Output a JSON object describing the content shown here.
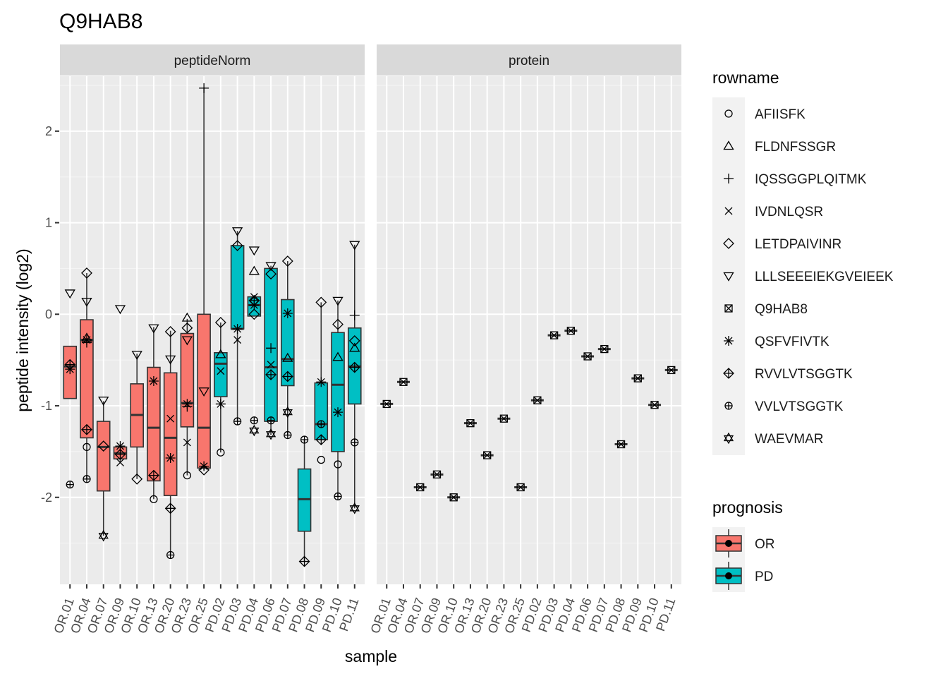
{
  "chart_data": {
    "type": "box",
    "title": "Q9HAB8",
    "xlabel": "sample",
    "ylabel": "peptide intensity (log2)",
    "ylim": [
      -2.95,
      2.6
    ],
    "y_ticks": [
      -2,
      -1,
      0,
      1,
      2
    ],
    "grid": true,
    "panels": [
      "peptideNorm",
      "protein"
    ],
    "samples": [
      "OR.01",
      "OR.04",
      "OR.07",
      "OR.09",
      "OR.10",
      "OR.13",
      "OR.20",
      "OR.23",
      "OR.25",
      "PD.02",
      "PD.03",
      "PD.04",
      "PD.06",
      "PD.07",
      "PD.08",
      "PD.09",
      "PD.10",
      "PD.11"
    ],
    "groups": [
      "OR",
      "OR",
      "OR",
      "OR",
      "OR",
      "OR",
      "OR",
      "OR",
      "OR",
      "PD",
      "PD",
      "PD",
      "PD",
      "PD",
      "PD",
      "PD",
      "PD",
      "PD"
    ],
    "group_colors": {
      "OR": "#F8766D",
      "PD": "#00BFC4"
    },
    "legend_rowname_title": "rowname",
    "legend_prognosis_title": "prognosis",
    "rownames": [
      "AFIISFK",
      "FLDNFSSGR",
      "IQSSGGPLQITMK",
      "IVDNLQSR",
      "LETDPAIVINR",
      "LLLSEEEIEKGVEIEEK",
      "Q9HAB8",
      "QSFVFIVTK",
      "RVVLVTSGGTK",
      "VVLVTSGGTK",
      "WAEVMAR"
    ],
    "rowname_shapes": [
      "circle",
      "triangle-up",
      "plus",
      "cross",
      "diamond",
      "triangle-down",
      "square-x",
      "asterisk",
      "diamond-plus",
      "circle-plus",
      "star-of-david"
    ],
    "prognosis_levels": [
      "OR",
      "PD"
    ],
    "boxes": [
      {
        "q1": -0.92,
        "median": -0.57,
        "q3": -0.35,
        "whisker_low": -0.92,
        "whisker_high": -0.35
      },
      {
        "q1": -1.35,
        "median": -0.28,
        "q3": -0.06,
        "whisker_low": -1.8,
        "whisker_high": 0.45
      },
      {
        "q1": -1.93,
        "median": -1.45,
        "q3": -1.17,
        "whisker_low": -2.42,
        "whisker_high": -0.95
      },
      {
        "q1": -1.58,
        "median": -1.52,
        "q3": -1.45,
        "whisker_low": -1.62,
        "whisker_high": -1.45
      },
      {
        "q1": -1.45,
        "median": -1.1,
        "q3": -0.76,
        "whisker_low": -1.8,
        "whisker_high": -0.43
      },
      {
        "q1": -1.82,
        "median": -1.24,
        "q3": -0.58,
        "whisker_low": -2.02,
        "whisker_high": -0.14
      },
      {
        "q1": -1.98,
        "median": -1.35,
        "q3": -0.64,
        "whisker_low": -2.63,
        "whisker_high": -0.18
      },
      {
        "q1": -1.23,
        "median": -0.97,
        "q3": -0.21,
        "whisker_low": -1.76,
        "whisker_high": -0.05
      },
      {
        "q1": -1.68,
        "median": -1.24,
        "q3": 0.0,
        "whisker_low": -1.7,
        "whisker_high": 2.48
      },
      {
        "q1": -0.9,
        "median": -0.54,
        "q3": -0.42,
        "whisker_low": -1.51,
        "whisker_high": -0.09
      },
      {
        "q1": -0.16,
        "median": -0.16,
        "q3": 0.75,
        "whisker_low": -1.17,
        "whisker_high": 0.91
      },
      {
        "q1": -0.02,
        "median": 0.1,
        "q3": 0.19,
        "whisker_low": -0.02,
        "whisker_high": 0.19
      },
      {
        "q1": -1.17,
        "median": -0.58,
        "q3": 0.5,
        "whisker_low": -1.32,
        "whisker_high": 0.53
      },
      {
        "q1": -0.78,
        "median": -0.49,
        "q3": 0.16,
        "whisker_low": -1.32,
        "whisker_high": 0.58
      },
      {
        "q1": -2.37,
        "median": -2.02,
        "q3": -1.69,
        "whisker_low": -2.7,
        "whisker_high": -1.37
      },
      {
        "q1": -1.37,
        "median": -1.2,
        "q3": -0.75,
        "whisker_low": -1.37,
        "whisker_high": 0.13
      },
      {
        "q1": -1.5,
        "median": -0.77,
        "q3": -0.2,
        "whisker_low": -1.99,
        "whisker_high": 0.15
      },
      {
        "q1": -0.98,
        "median": -0.57,
        "q3": -0.15,
        "whisker_low": -2.12,
        "whisker_high": 0.76
      }
    ],
    "peptide_points": [
      {
        "s": 0,
        "r": "LLLSEEEIEKGVEIEEK",
        "y": 0.23
      },
      {
        "s": 0,
        "r": "RVVLVTSGGTK",
        "y": -0.55
      },
      {
        "s": 0,
        "r": "QSFVFIVTK",
        "y": -0.6
      },
      {
        "s": 0,
        "r": "VVLVTSGGTK",
        "y": -1.86
      },
      {
        "s": 1,
        "r": "LETDPAIVINR",
        "y": 0.45
      },
      {
        "s": 1,
        "r": "LLLSEEEIEKGVEIEEK",
        "y": 0.14
      },
      {
        "s": 1,
        "r": "FLDNFSSGR",
        "y": -0.26
      },
      {
        "s": 1,
        "r": "QSFVFIVTK",
        "y": -0.28
      },
      {
        "s": 1,
        "r": "IQSSGGPLQITMK",
        "y": -0.31
      },
      {
        "s": 1,
        "r": "RVVLVTSGGTK",
        "y": -1.26
      },
      {
        "s": 1,
        "r": "AFIISFK",
        "y": -1.45
      },
      {
        "s": 1,
        "r": "VVLVTSGGTK",
        "y": -1.8
      },
      {
        "s": 2,
        "r": "LLLSEEEIEKGVEIEEK",
        "y": -0.94
      },
      {
        "s": 2,
        "r": "LETDPAIVINR",
        "y": -1.44
      },
      {
        "s": 2,
        "r": "WAEVMAR",
        "y": -2.42
      },
      {
        "s": 3,
        "r": "LLLSEEEIEKGVEIEEK",
        "y": 0.06
      },
      {
        "s": 3,
        "r": "QSFVFIVTK",
        "y": -1.44
      },
      {
        "s": 3,
        "r": "RVVLVTSGGTK",
        "y": -1.53
      },
      {
        "s": 3,
        "r": "IVDNLQSR",
        "y": -1.62
      },
      {
        "s": 4,
        "r": "LLLSEEEIEKGVEIEEK",
        "y": -0.44
      },
      {
        "s": 4,
        "r": "LETDPAIVINR",
        "y": -1.8
      },
      {
        "s": 5,
        "r": "LLLSEEEIEKGVEIEEK",
        "y": -0.15
      },
      {
        "s": 5,
        "r": "QSFVFIVTK",
        "y": -0.73
      },
      {
        "s": 5,
        "r": "RVVLVTSGGTK",
        "y": -1.76
      },
      {
        "s": 5,
        "r": "AFIISFK",
        "y": -2.02
      },
      {
        "s": 6,
        "r": "LETDPAIVINR",
        "y": -0.19
      },
      {
        "s": 6,
        "r": "LLLSEEEIEKGVEIEEK",
        "y": -0.49
      },
      {
        "s": 6,
        "r": "IVDNLQSR",
        "y": -1.14
      },
      {
        "s": 6,
        "r": "QSFVFIVTK",
        "y": -1.57
      },
      {
        "s": 6,
        "r": "RVVLVTSGGTK",
        "y": -2.12
      },
      {
        "s": 6,
        "r": "VVLVTSGGTK",
        "y": -2.63
      },
      {
        "s": 7,
        "r": "FLDNFSSGR",
        "y": -0.04
      },
      {
        "s": 7,
        "r": "LETDPAIVINR",
        "y": -0.15
      },
      {
        "s": 7,
        "r": "LLLSEEEIEKGVEIEEK",
        "y": -0.28
      },
      {
        "s": 7,
        "r": "QSFVFIVTK",
        "y": -0.98
      },
      {
        "s": 7,
        "r": "IQSSGGPLQITMK",
        "y": -1.01
      },
      {
        "s": 7,
        "r": "IVDNLQSR",
        "y": -1.4
      },
      {
        "s": 7,
        "r": "AFIISFK",
        "y": -1.76
      },
      {
        "s": 8,
        "r": "IQSSGGPLQITMK",
        "y": 2.47
      },
      {
        "s": 8,
        "r": "LLLSEEEIEKGVEIEEK",
        "y": -0.84
      },
      {
        "s": 8,
        "r": "QSFVFIVTK",
        "y": -1.66
      },
      {
        "s": 8,
        "r": "LETDPAIVINR",
        "y": -1.7
      },
      {
        "s": 9,
        "r": "LETDPAIVINR",
        "y": -0.09
      },
      {
        "s": 9,
        "r": "FLDNFSSGR",
        "y": -0.44
      },
      {
        "s": 9,
        "r": "IVDNLQSR",
        "y": -0.62
      },
      {
        "s": 9,
        "r": "QSFVFIVTK",
        "y": -0.98
      },
      {
        "s": 9,
        "r": "AFIISFK",
        "y": -1.51
      },
      {
        "s": 10,
        "r": "LLLSEEEIEKGVEIEEK",
        "y": 0.91
      },
      {
        "s": 10,
        "r": "LETDPAIVINR",
        "y": 0.75
      },
      {
        "s": 10,
        "r": "QSFVFIVTK",
        "y": -0.16
      },
      {
        "s": 10,
        "r": "IVDNLQSR",
        "y": -0.28
      },
      {
        "s": 10,
        "r": "VVLVTSGGTK",
        "y": -1.17
      },
      {
        "s": 11,
        "r": "LLLSEEEIEKGVEIEEK",
        "y": 0.7
      },
      {
        "s": 11,
        "r": "FLDNFSSGR",
        "y": 0.47
      },
      {
        "s": 11,
        "r": "IVDNLQSR",
        "y": 0.19
      },
      {
        "s": 11,
        "r": "RVVLVTSGGTK",
        "y": 0.15
      },
      {
        "s": 11,
        "r": "QSFVFIVTK",
        "y": 0.1
      },
      {
        "s": 11,
        "r": "LETDPAIVINR",
        "y": 0.0
      },
      {
        "s": 11,
        "r": "VVLVTSGGTK",
        "y": -1.16
      },
      {
        "s": 11,
        "r": "WAEVMAR",
        "y": -1.27
      },
      {
        "s": 12,
        "r": "LLLSEEEIEKGVEIEEK",
        "y": 0.53
      },
      {
        "s": 12,
        "r": "LETDPAIVINR",
        "y": 0.44
      },
      {
        "s": 12,
        "r": "IQSSGGPLQITMK",
        "y": -0.37
      },
      {
        "s": 12,
        "r": "IVDNLQSR",
        "y": -0.55
      },
      {
        "s": 12,
        "r": "RVVLVTSGGTK",
        "y": -0.66
      },
      {
        "s": 12,
        "r": "VVLVTSGGTK",
        "y": -1.16
      },
      {
        "s": 12,
        "r": "WAEVMAR",
        "y": -1.31
      },
      {
        "s": 13,
        "r": "LETDPAIVINR",
        "y": 0.58
      },
      {
        "s": 13,
        "r": "QSFVFIVTK",
        "y": 0.01
      },
      {
        "s": 13,
        "r": "FLDNFSSGR",
        "y": -0.48
      },
      {
        "s": 13,
        "r": "RVVLVTSGGTK",
        "y": -0.68
      },
      {
        "s": 13,
        "r": "WAEVMAR",
        "y": -1.07
      },
      {
        "s": 13,
        "r": "VVLVTSGGTK",
        "y": -1.32
      },
      {
        "s": 14,
        "r": "VVLVTSGGTK",
        "y": -1.37
      },
      {
        "s": 14,
        "r": "RVVLVTSGGTK",
        "y": -2.7
      },
      {
        "s": 15,
        "r": "LETDPAIVINR",
        "y": 0.13
      },
      {
        "s": 15,
        "r": "QSFVFIVTK",
        "y": -0.74
      },
      {
        "s": 15,
        "r": "VVLVTSGGTK",
        "y": -1.2
      },
      {
        "s": 15,
        "r": "RVVLVTSGGTK",
        "y": -1.37
      },
      {
        "s": 15,
        "r": "AFIISFK",
        "y": -1.59
      },
      {
        "s": 16,
        "r": "LLLSEEEIEKGVEIEEK",
        "y": 0.15
      },
      {
        "s": 16,
        "r": "LETDPAIVINR",
        "y": -0.11
      },
      {
        "s": 16,
        "r": "FLDNFSSGR",
        "y": -0.47
      },
      {
        "s": 16,
        "r": "QSFVFIVTK",
        "y": -1.07
      },
      {
        "s": 16,
        "r": "AFIISFK",
        "y": -1.64
      },
      {
        "s": 16,
        "r": "VVLVTSGGTK",
        "y": -1.99
      },
      {
        "s": 17,
        "r": "LLLSEEEIEKGVEIEEK",
        "y": 0.76
      },
      {
        "s": 17,
        "r": "IQSSGGPLQITMK",
        "y": -0.01
      },
      {
        "s": 17,
        "r": "LETDPAIVINR",
        "y": -0.29
      },
      {
        "s": 17,
        "r": "FLDNFSSGR",
        "y": -0.37
      },
      {
        "s": 17,
        "r": "RVVLVTSGGTK",
        "y": -0.58
      },
      {
        "s": 17,
        "r": "VVLVTSGGTK",
        "y": -1.4
      },
      {
        "s": 17,
        "r": "WAEVMAR",
        "y": -2.12
      }
    ],
    "protein_values": [
      -0.98,
      -0.74,
      -1.89,
      -1.75,
      -2.0,
      -1.19,
      -1.54,
      -1.14,
      -1.89,
      -0.94,
      -0.23,
      -0.18,
      -0.46,
      -0.38,
      -1.42,
      -0.7,
      -0.99,
      -0.61
    ]
  }
}
